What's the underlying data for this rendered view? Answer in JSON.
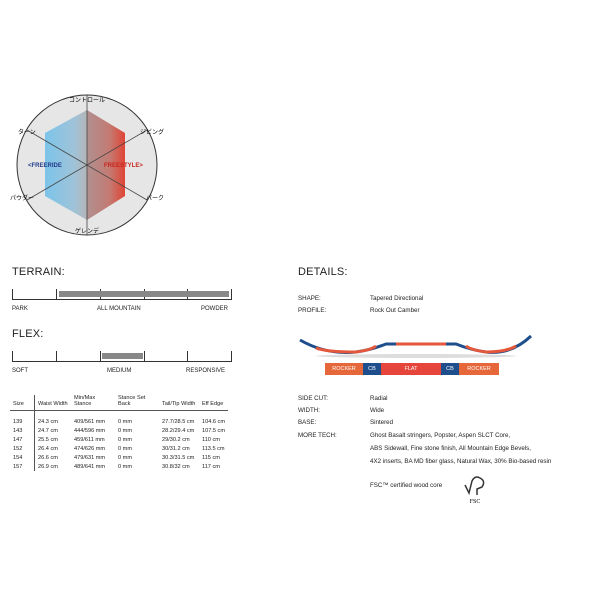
{
  "radar": {
    "axes": [
      "コントロール",
      "ジビング",
      "パーク",
      "ゲレンデ",
      "パウダー",
      "ターン"
    ],
    "left_label": "<FREERIDE",
    "right_label": "FREESTYLE>",
    "colors": {
      "freeride": "#5aaed8",
      "freestyle": "#d9453b"
    }
  },
  "terrain": {
    "title": "TERRAIN:",
    "labels": [
      "PARK",
      "ALL MOUNTAIN",
      "POWDER"
    ],
    "range": [
      0.2,
      1.0
    ]
  },
  "flex": {
    "title": "FLEX:",
    "labels": [
      "SOFT",
      "MEDIUM",
      "RESPONSIVE"
    ],
    "range": [
      0.4,
      0.6
    ]
  },
  "table": {
    "headers": [
      "Size",
      "Waist Width",
      "Min/Max Stance",
      "Stance Set Back",
      "Tail/Tip Width",
      "Eff Edge"
    ],
    "rows": [
      [
        "139",
        "24.3 cm",
        "409/561 mm",
        "0 mm",
        "27.7/28.5 cm",
        "104.6 cm"
      ],
      [
        "143",
        "24.7 cm",
        "444/596 mm",
        "0 mm",
        "28.2/29.4 cm",
        "107.5 cm"
      ],
      [
        "147",
        "25.5 cm",
        "459/611 mm",
        "0 mm",
        "29/30.2 cm",
        "110 cm"
      ],
      [
        "152",
        "26.4 cm",
        "474/626 mm",
        "0 mm",
        "30/31.2 cm",
        "113.5 cm"
      ],
      [
        "154",
        "26.6 cm",
        "479/631 mm",
        "0 mm",
        "30.3/31.5 cm",
        "115 cm"
      ],
      [
        "157",
        "26.9 cm",
        "489/641 mm",
        "0 mm",
        "30.8/32 cm",
        "117 cm"
      ]
    ]
  },
  "details": {
    "title": "DETAILS:",
    "shape_label": "SHAPE:",
    "shape": "Tapered Directional",
    "profile_label": "PROFILE:",
    "profile": "Rock Out Camber",
    "profile_segments": [
      "ROCKER",
      "CB",
      "FLAT",
      "CB",
      "ROCKER"
    ],
    "sidecut_label": "SIDE CUT:",
    "sidecut": "Radial",
    "width_label": "WIDTH:",
    "width": "Wide",
    "base_label": "BASE:",
    "base": "Sintered",
    "tech_label": "MORE TECH:",
    "tech": [
      "Ghost Basalt stringers, Popster, Aspen SLCT Core,",
      "ABS Sidewall, Fine stone finish, All Mountain Edge Bevels,",
      "4X2 inserts, BA MD fiber glass, Natural Wax, 30% Bio-based resin"
    ],
    "fsc_text": "FSC™ certified wood core",
    "fsc_logo": "FSC"
  }
}
